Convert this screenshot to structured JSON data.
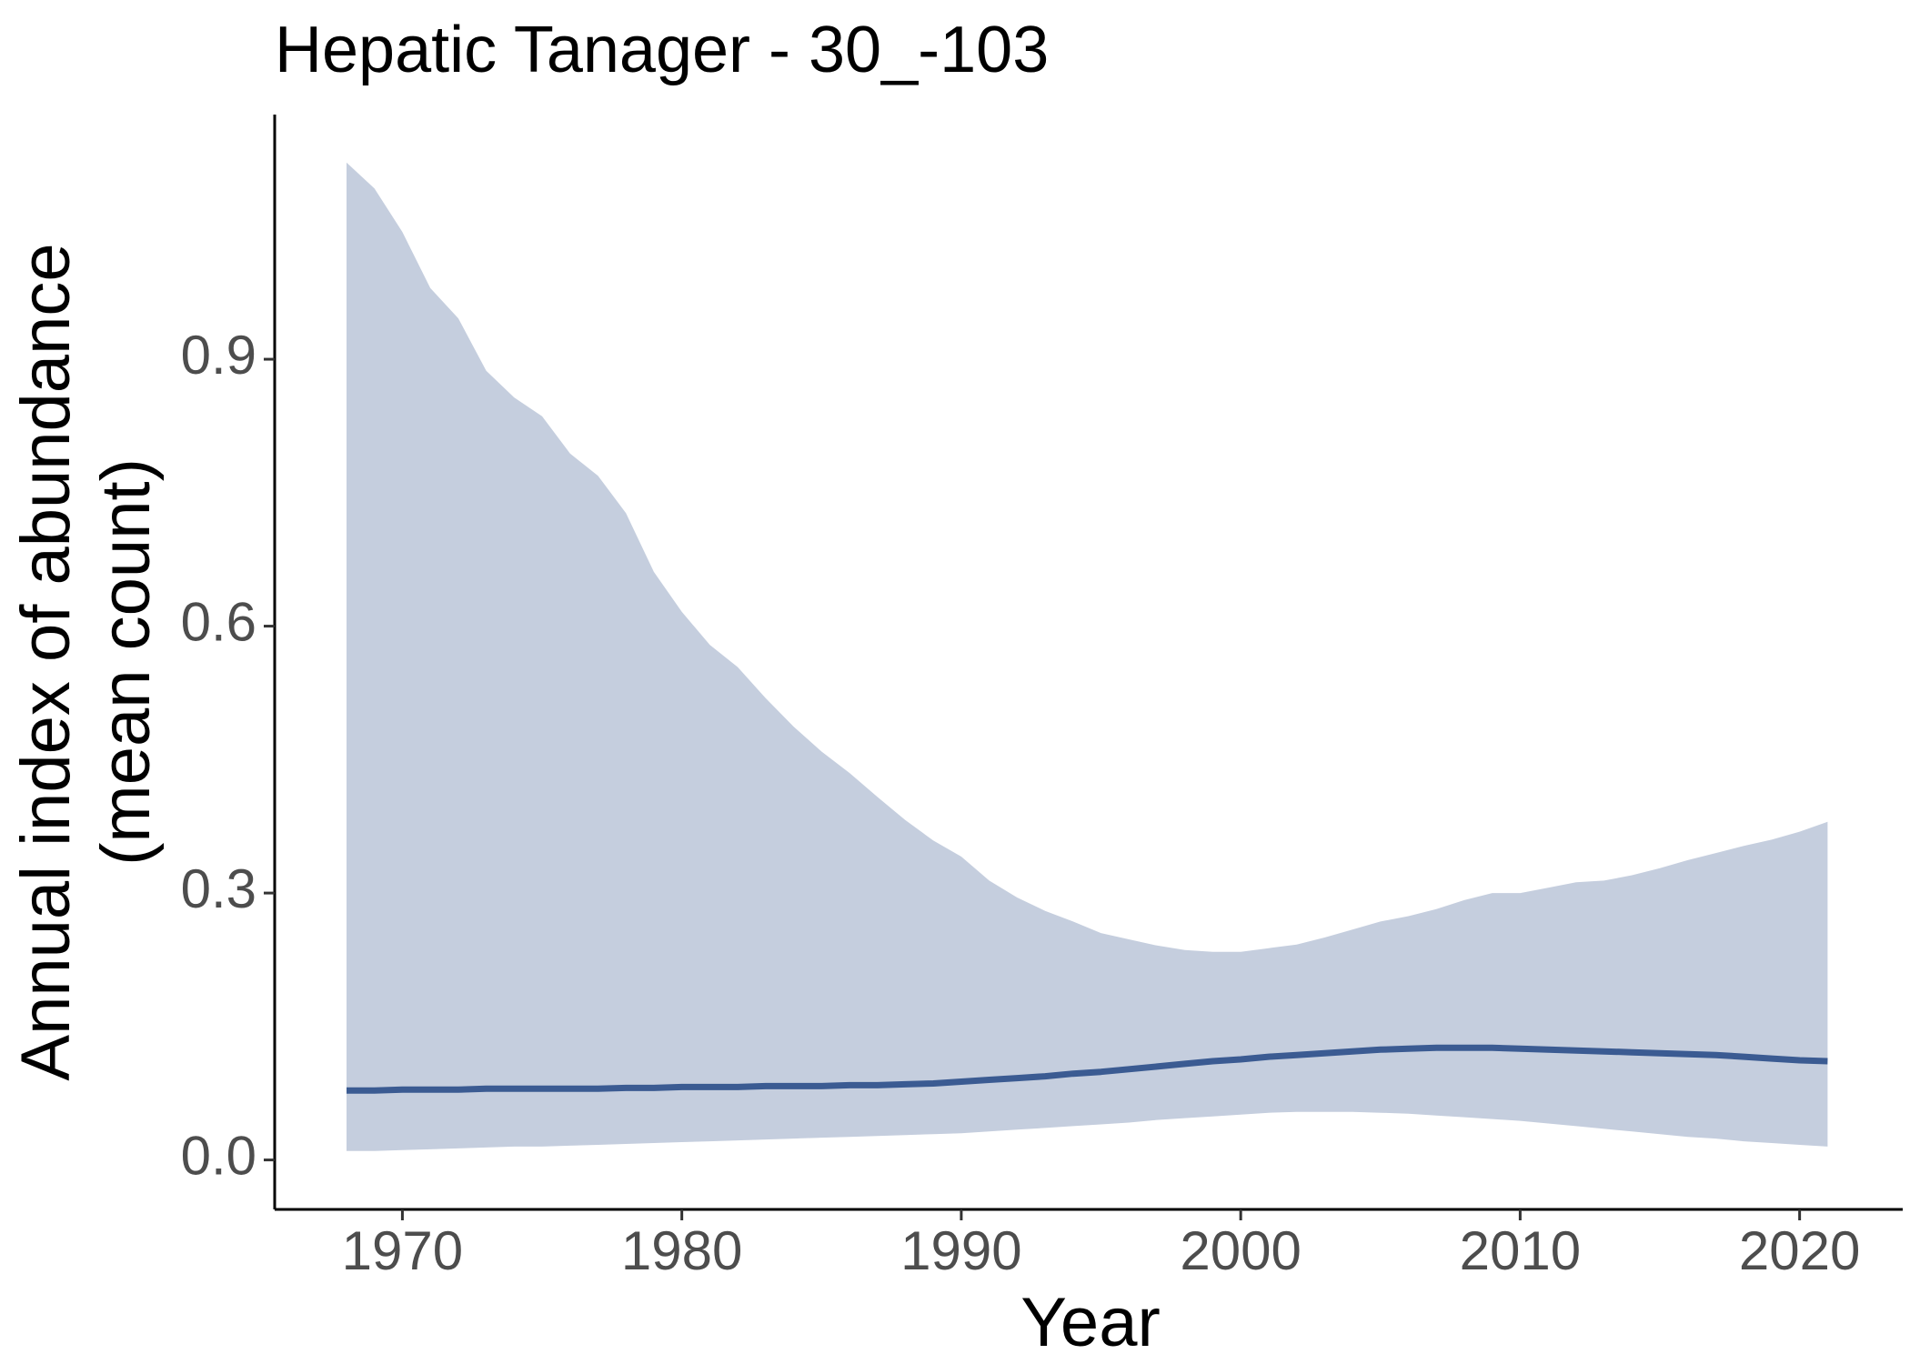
{
  "chart_data": {
    "type": "line",
    "title": "Hepatic Tanager - 30_-103",
    "xlabel": "Year",
    "ylabel": [
      "Annual index of abundance",
      "(mean count)"
    ],
    "x": [
      1968,
      1969,
      1970,
      1971,
      1972,
      1973,
      1974,
      1975,
      1976,
      1977,
      1978,
      1979,
      1980,
      1981,
      1982,
      1983,
      1984,
      1985,
      1986,
      1987,
      1988,
      1989,
      1990,
      1991,
      1992,
      1993,
      1994,
      1995,
      1996,
      1997,
      1998,
      1999,
      2000,
      2001,
      2002,
      2003,
      2004,
      2005,
      2006,
      2007,
      2008,
      2009,
      2010,
      2011,
      2012,
      2013,
      2014,
      2015,
      2016,
      2017,
      2018,
      2019,
      2020,
      2021
    ],
    "series": [
      {
        "color": "#3b5b92",
        "band_color": "#c5cede",
        "values": [
          0.078,
          0.078,
          0.079,
          0.079,
          0.079,
          0.08,
          0.08,
          0.08,
          0.08,
          0.08,
          0.081,
          0.081,
          0.082,
          0.082,
          0.082,
          0.083,
          0.083,
          0.083,
          0.084,
          0.084,
          0.085,
          0.086,
          0.088,
          0.09,
          0.092,
          0.094,
          0.097,
          0.099,
          0.102,
          0.105,
          0.108,
          0.111,
          0.113,
          0.116,
          0.118,
          0.12,
          0.122,
          0.124,
          0.125,
          0.126,
          0.126,
          0.126,
          0.125,
          0.124,
          0.123,
          0.122,
          0.121,
          0.12,
          0.119,
          0.118,
          0.116,
          0.114,
          0.112,
          0.111
        ],
        "upper": [
          1.121,
          1.092,
          1.043,
          0.98,
          0.946,
          0.887,
          0.857,
          0.836,
          0.794,
          0.769,
          0.727,
          0.661,
          0.616,
          0.579,
          0.554,
          0.519,
          0.487,
          0.459,
          0.435,
          0.408,
          0.382,
          0.359,
          0.341,
          0.314,
          0.295,
          0.28,
          0.268,
          0.255,
          0.248,
          0.241,
          0.236,
          0.234,
          0.234,
          0.238,
          0.242,
          0.25,
          0.259,
          0.268,
          0.274,
          0.282,
          0.292,
          0.3,
          0.3,
          0.306,
          0.312,
          0.314,
          0.32,
          0.328,
          0.337,
          0.345,
          0.353,
          0.36,
          0.369,
          0.38
        ],
        "lower": [
          0.01,
          0.01,
          0.011,
          0.012,
          0.013,
          0.014,
          0.015,
          0.015,
          0.016,
          0.017,
          0.018,
          0.019,
          0.02,
          0.021,
          0.022,
          0.023,
          0.024,
          0.025,
          0.026,
          0.027,
          0.028,
          0.029,
          0.03,
          0.032,
          0.034,
          0.036,
          0.038,
          0.04,
          0.042,
          0.045,
          0.047,
          0.049,
          0.051,
          0.053,
          0.054,
          0.054,
          0.054,
          0.053,
          0.052,
          0.05,
          0.048,
          0.046,
          0.044,
          0.041,
          0.038,
          0.035,
          0.032,
          0.029,
          0.026,
          0.024,
          0.021,
          0.019,
          0.017,
          0.015
        ]
      }
    ],
    "xlim": [
      1965.43,
      2023.69
    ],
    "xticks": [
      1970,
      1980,
      1990,
      2000,
      2010,
      2020
    ],
    "ylim": [
      -0.0556,
      1.175
    ],
    "yticks": [
      {
        "value": 0,
        "label": "0.0"
      },
      0.3,
      0.6,
      0.9
    ],
    "grid": false
  }
}
